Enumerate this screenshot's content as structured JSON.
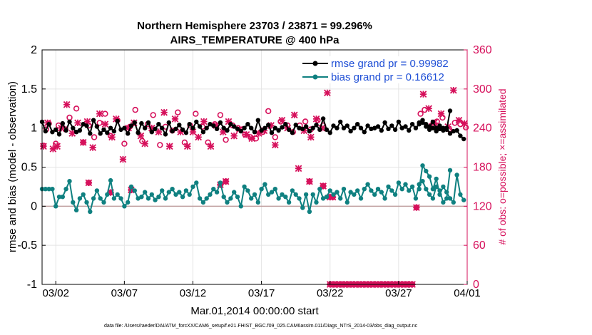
{
  "chart_data": {
    "type": "line",
    "title": "Northern Hemisphere 23703 / 23871 = 99.296%",
    "subtitle": "AIRS_TEMPERATURE @ 400 hPa",
    "xlabel": "Mar.01,2014 00:00:00 start",
    "ylabel": "rmse and bias (model - observation)",
    "ylabel_right": "# of obs: o=possible; ×=assimilated",
    "footer": "data file: /Users/raeder/DAI/ATM_forcXX/CAM6_setup/f.e21.FHIST_BGC.f09_025.CAM6assim.011/Diags_NTrS_2014-03/obs_diag_output.nc",
    "ylim": [
      -1,
      2
    ],
    "ylim_right": [
      0,
      360
    ],
    "xlim": [
      0,
      31
    ],
    "yticks": [
      "-1",
      "-0.5",
      "0",
      "0.5",
      "1",
      "1.5",
      "2"
    ],
    "yticks_right": [
      "0",
      "60",
      "120",
      "180",
      "240",
      "300",
      "360"
    ],
    "xticks": [
      "03/02",
      "03/07",
      "03/12",
      "03/17",
      "03/22",
      "03/27",
      "04/01"
    ],
    "xtick_days": [
      1,
      6,
      11,
      16,
      21,
      26,
      31
    ],
    "legend": [
      {
        "name": "rmse grand pr = 0.99982"
      },
      {
        "name": "bias grand pr = 0.16612"
      }
    ],
    "colors": {
      "rmse": "#000000",
      "bias": "#0f8080",
      "obs": "#d6105b",
      "legend_text": "#1f4fd6",
      "zero_line": "#c0a0a0"
    },
    "series": [
      {
        "name": "rmse",
        "segments": [
          {
            "x0": 0.0,
            "dx": 0.25,
            "values": [
              1.08,
              0.96,
              1.05,
              0.95,
              0.98,
              0.92,
              1.06,
              0.97,
              1.08,
              1.0,
              0.95,
              0.97,
              1.05,
              1.03,
              0.93,
              1.1,
              1.02,
              0.93,
              0.98,
              0.94,
              1.0,
              0.96,
              1.09,
              0.98,
              1.0,
              0.93,
              1.03,
              1.07,
              0.94,
              1.06,
              1.0,
              1.07,
              0.95,
              0.99,
              1.05,
              1.0,
              0.92,
              1.07,
              0.96,
              0.99,
              1.04,
              0.98,
              0.94,
              1.05,
              1.0,
              1.08,
              1.02,
              0.95,
              1.0,
              1.05,
              1.03,
              0.99,
              1.07,
              1.0,
              0.97,
              1.05,
              1.02,
              0.99,
              0.96,
              1.0,
              1.05,
              1.0,
              0.95,
              1.1,
              0.97,
              1.0,
              1.04,
              0.94,
              1.0,
              0.97,
              1.01,
              1.05,
              0.98,
              0.94,
              1.04,
              1.0,
              0.99,
              1.02,
              0.96,
              1.0,
              1.04,
              0.98,
              1.12,
              0.98,
              0.94,
              1.03,
              1.0,
              1.08,
              1.0,
              1.03,
              0.96,
              1.0,
              1.05,
              1.0,
              0.95,
              1.03,
              0.99,
              1.0,
              1.02,
              0.97,
              1.07,
              0.99,
              1.03,
              0.98,
              1.08,
              1.0,
              1.02,
              0.97,
              1.05,
              1.0,
              1.05,
              1.1,
              1.02,
              0.98,
              1.0,
              0.96,
              1.03,
              1.0,
              0.98,
              1.22
            ]
          },
          {
            "x0": 27.5,
            "dx": 0.25,
            "values": [
              1.07,
              1.07,
              1.05,
              1.02,
              1.08,
              1.0,
              0.99,
              0.97,
              1.0,
              0.93,
              0.96,
              0.97,
              0.9,
              0.86
            ]
          }
        ]
      },
      {
        "name": "bias",
        "segments": [
          {
            "x0": 0.0,
            "dx": 0.25,
            "values": [
              0.22,
              0.22,
              0.22,
              0.22,
              0.0,
              0.12,
              0.12,
              0.22,
              0.32,
              0.05,
              -0.05,
              0.1,
              0.15,
              0.05,
              -0.07,
              0.1,
              0.2,
              0.1,
              0.05,
              0.15,
              0.33,
              0.1,
              0.15,
              0.1,
              0.0,
              0.05,
              0.25,
              0.2,
              0.1,
              0.12,
              0.18,
              0.1,
              0.15,
              0.08,
              0.12,
              0.2,
              0.1,
              0.18,
              0.22,
              0.15,
              0.18,
              0.12,
              0.2,
              0.15,
              0.25,
              0.3,
              0.1,
              0.05,
              0.1,
              0.15,
              0.22,
              0.18,
              0.3,
              0.12,
              0.05,
              0.1,
              0.18,
              0.12,
              0.0,
              0.25,
              0.2,
              0.1,
              0.15,
              0.05,
              0.22,
              0.28,
              0.15,
              0.18,
              0.22,
              0.1,
              0.15,
              0.12,
              0.05,
              0.2,
              0.15,
              0.1,
              -0.02,
              0.15,
              -0.07,
              0.15,
              0.05,
              0.22,
              0.1,
              0.12,
              0.2,
              0.15,
              0.18,
              0.1,
              0.22,
              0.05,
              0.18,
              0.15,
              0.2,
              0.1,
              0.22,
              0.28,
              0.2,
              0.15,
              0.22,
              0.18,
              0.1,
              0.25,
              0.2,
              0.15,
              0.3,
              0.22,
              0.28,
              0.2,
              0.25,
              0.1,
              0.28,
              0.32,
              0.22,
              0.15,
              0.1,
              0.25,
              0.2,
              0.05,
              0.1,
              0.46
            ]
          },
          {
            "x0": 27.5,
            "dx": 0.25,
            "values": [
              0.22,
              0.52,
              0.45,
              0.38,
              0.22,
              0.35,
              0.15,
              0.25,
              0.18,
              0.1,
              0.05,
              0.4,
              0.15,
              0.08
            ]
          }
        ]
      },
      {
        "name": "obs_possible_o",
        "points": [
          [
            0.1,
            213
          ],
          [
            0.3,
            238
          ],
          [
            0.5,
            247
          ],
          [
            1.0,
            216
          ],
          [
            1.2,
            244
          ],
          [
            1.7,
            238
          ],
          [
            2.0,
            256
          ],
          [
            2.5,
            270
          ],
          [
            3.0,
            218
          ],
          [
            3.4,
            244
          ],
          [
            3.8,
            226
          ],
          [
            4.2,
            248
          ],
          [
            4.6,
            262
          ],
          [
            5.0,
            228
          ],
          [
            5.5,
            252
          ],
          [
            6.0,
            216
          ],
          [
            6.4,
            242
          ],
          [
            6.8,
            268
          ],
          [
            7.3,
            220
          ],
          [
            7.7,
            246
          ],
          [
            8.1,
            260
          ],
          [
            8.6,
            214
          ],
          [
            9.0,
            242
          ],
          [
            9.5,
            236
          ],
          [
            9.9,
            264
          ],
          [
            10.4,
            218
          ],
          [
            10.8,
            244
          ],
          [
            11.2,
            262
          ],
          [
            11.7,
            242
          ],
          [
            12.1,
            218
          ],
          [
            12.6,
            246
          ],
          [
            13.0,
            260
          ],
          [
            13.4,
            222
          ],
          [
            13.9,
            244
          ],
          [
            14.3,
            240
          ],
          [
            14.8,
            230
          ],
          [
            15.2,
            226
          ],
          [
            15.6,
            224
          ],
          [
            16.1,
            234
          ],
          [
            16.5,
            266
          ],
          [
            17.0,
            226
          ],
          [
            17.4,
            250
          ],
          [
            17.9,
            244
          ],
          [
            18.3,
            234
          ],
          [
            18.8,
            244
          ],
          [
            19.2,
            250
          ],
          [
            19.6,
            238
          ],
          [
            20.1,
            252
          ],
          [
            20.5,
            244
          ],
          [
            27.6,
            262
          ],
          [
            27.9,
            268
          ],
          [
            28.4,
            244
          ],
          [
            28.8,
            250
          ],
          [
            29.2,
            256
          ],
          [
            29.7,
            238
          ],
          [
            30.1,
            248
          ],
          [
            30.5,
            246
          ],
          [
            30.9,
            241
          ]
        ]
      },
      {
        "name": "obs_assimilated_x",
        "points": [
          [
            0.1,
            212
          ],
          [
            0.4,
            248
          ],
          [
            0.8,
            208
          ],
          [
            1.1,
            212
          ],
          [
            1.4,
            240
          ],
          [
            1.8,
            276
          ],
          [
            2.2,
            232
          ],
          [
            2.6,
            248
          ],
          [
            3.0,
            218
          ],
          [
            3.3,
            250
          ],
          [
            3.7,
            210
          ],
          [
            4.2,
            262
          ],
          [
            4.6,
            246
          ],
          [
            5.1,
            226
          ],
          [
            5.4,
            254
          ],
          [
            5.9,
            192
          ],
          [
            6.3,
            240
          ],
          [
            6.7,
            248
          ],
          [
            7.2,
            228
          ],
          [
            7.5,
            216
          ],
          [
            8.0,
            240
          ],
          [
            8.5,
            234
          ],
          [
            8.9,
            264
          ],
          [
            9.3,
            212
          ],
          [
            9.7,
            254
          ],
          [
            10.1,
            234
          ],
          [
            10.6,
            212
          ],
          [
            11.0,
            234
          ],
          [
            11.4,
            226
          ],
          [
            11.8,
            250
          ],
          [
            12.3,
            212
          ],
          [
            12.7,
            244
          ],
          [
            13.2,
            234
          ],
          [
            13.6,
            250
          ],
          [
            14.0,
            228
          ],
          [
            14.4,
            238
          ],
          [
            14.9,
            230
          ],
          [
            15.3,
            224
          ],
          [
            15.8,
            232
          ],
          [
            16.2,
            236
          ],
          [
            16.7,
            244
          ],
          [
            17.0,
            214
          ],
          [
            17.5,
            252
          ],
          [
            17.9,
            240
          ],
          [
            18.4,
            260
          ],
          [
            18.7,
            178
          ],
          [
            19.1,
            236
          ],
          [
            19.6,
            226
          ],
          [
            20.0,
            254
          ],
          [
            20.4,
            240
          ],
          [
            20.8,
            294
          ],
          [
            27.8,
            292
          ],
          [
            28.2,
            270
          ],
          [
            28.6,
            248
          ],
          [
            29.1,
            262
          ],
          [
            29.6,
            242
          ],
          [
            30.0,
            298
          ],
          [
            30.4,
            252
          ],
          [
            30.8,
            247
          ]
        ]
      },
      {
        "name": "obs_low_markers",
        "points": [
          [
            3.4,
            156
          ],
          [
            5.0,
            141
          ],
          [
            6.5,
            145
          ],
          [
            13.0,
            153
          ],
          [
            13.4,
            158
          ],
          [
            19.5,
            158
          ],
          [
            20.5,
            151
          ],
          [
            21.0,
            134
          ],
          [
            21.2,
            134
          ],
          [
            27.3,
            118
          ]
        ]
      },
      {
        "name": "obs_zero_markers",
        "x_from": 21.0,
        "x_to": 27.0,
        "dx": 0.25,
        "value": 0
      }
    ]
  }
}
